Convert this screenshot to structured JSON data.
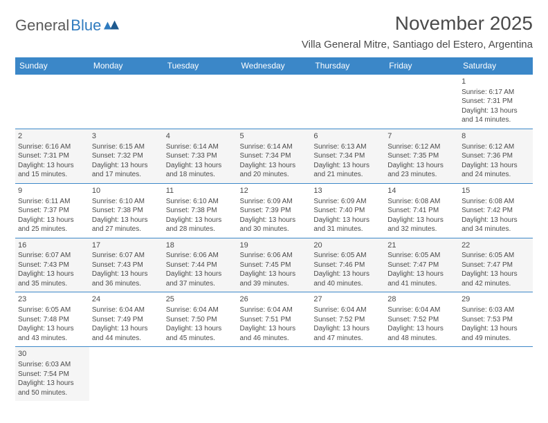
{
  "logo": {
    "text1": "General",
    "text2": "Blue"
  },
  "title": "November 2025",
  "location": "Villa General Mitre, Santiago del Estero, Argentina",
  "colors": {
    "header_bg": "#3b87c8",
    "header_text": "#ffffff",
    "cell_border": "#3b87c8",
    "shaded_bg": "#f5f5f5",
    "text": "#4a4a4a",
    "logo_gray": "#5a5a5a",
    "logo_blue": "#2f7bbf"
  },
  "weekdays": [
    "Sunday",
    "Monday",
    "Tuesday",
    "Wednesday",
    "Thursday",
    "Friday",
    "Saturday"
  ],
  "weeks": [
    [
      null,
      null,
      null,
      null,
      null,
      null,
      {
        "n": "1",
        "sr": "6:17 AM",
        "ss": "7:31 PM",
        "dl": "13 hours and 14 minutes."
      }
    ],
    [
      {
        "n": "2",
        "sr": "6:16 AM",
        "ss": "7:31 PM",
        "dl": "13 hours and 15 minutes."
      },
      {
        "n": "3",
        "sr": "6:15 AM",
        "ss": "7:32 PM",
        "dl": "13 hours and 17 minutes."
      },
      {
        "n": "4",
        "sr": "6:14 AM",
        "ss": "7:33 PM",
        "dl": "13 hours and 18 minutes."
      },
      {
        "n": "5",
        "sr": "6:14 AM",
        "ss": "7:34 PM",
        "dl": "13 hours and 20 minutes."
      },
      {
        "n": "6",
        "sr": "6:13 AM",
        "ss": "7:34 PM",
        "dl": "13 hours and 21 minutes."
      },
      {
        "n": "7",
        "sr": "6:12 AM",
        "ss": "7:35 PM",
        "dl": "13 hours and 23 minutes."
      },
      {
        "n": "8",
        "sr": "6:12 AM",
        "ss": "7:36 PM",
        "dl": "13 hours and 24 minutes."
      }
    ],
    [
      {
        "n": "9",
        "sr": "6:11 AM",
        "ss": "7:37 PM",
        "dl": "13 hours and 25 minutes."
      },
      {
        "n": "10",
        "sr": "6:10 AM",
        "ss": "7:38 PM",
        "dl": "13 hours and 27 minutes."
      },
      {
        "n": "11",
        "sr": "6:10 AM",
        "ss": "7:38 PM",
        "dl": "13 hours and 28 minutes."
      },
      {
        "n": "12",
        "sr": "6:09 AM",
        "ss": "7:39 PM",
        "dl": "13 hours and 30 minutes."
      },
      {
        "n": "13",
        "sr": "6:09 AM",
        "ss": "7:40 PM",
        "dl": "13 hours and 31 minutes."
      },
      {
        "n": "14",
        "sr": "6:08 AM",
        "ss": "7:41 PM",
        "dl": "13 hours and 32 minutes."
      },
      {
        "n": "15",
        "sr": "6:08 AM",
        "ss": "7:42 PM",
        "dl": "13 hours and 34 minutes."
      }
    ],
    [
      {
        "n": "16",
        "sr": "6:07 AM",
        "ss": "7:43 PM",
        "dl": "13 hours and 35 minutes."
      },
      {
        "n": "17",
        "sr": "6:07 AM",
        "ss": "7:43 PM",
        "dl": "13 hours and 36 minutes."
      },
      {
        "n": "18",
        "sr": "6:06 AM",
        "ss": "7:44 PM",
        "dl": "13 hours and 37 minutes."
      },
      {
        "n": "19",
        "sr": "6:06 AM",
        "ss": "7:45 PM",
        "dl": "13 hours and 39 minutes."
      },
      {
        "n": "20",
        "sr": "6:05 AM",
        "ss": "7:46 PM",
        "dl": "13 hours and 40 minutes."
      },
      {
        "n": "21",
        "sr": "6:05 AM",
        "ss": "7:47 PM",
        "dl": "13 hours and 41 minutes."
      },
      {
        "n": "22",
        "sr": "6:05 AM",
        "ss": "7:47 PM",
        "dl": "13 hours and 42 minutes."
      }
    ],
    [
      {
        "n": "23",
        "sr": "6:05 AM",
        "ss": "7:48 PM",
        "dl": "13 hours and 43 minutes."
      },
      {
        "n": "24",
        "sr": "6:04 AM",
        "ss": "7:49 PM",
        "dl": "13 hours and 44 minutes."
      },
      {
        "n": "25",
        "sr": "6:04 AM",
        "ss": "7:50 PM",
        "dl": "13 hours and 45 minutes."
      },
      {
        "n": "26",
        "sr": "6:04 AM",
        "ss": "7:51 PM",
        "dl": "13 hours and 46 minutes."
      },
      {
        "n": "27",
        "sr": "6:04 AM",
        "ss": "7:52 PM",
        "dl": "13 hours and 47 minutes."
      },
      {
        "n": "28",
        "sr": "6:04 AM",
        "ss": "7:52 PM",
        "dl": "13 hours and 48 minutes."
      },
      {
        "n": "29",
        "sr": "6:03 AM",
        "ss": "7:53 PM",
        "dl": "13 hours and 49 minutes."
      }
    ],
    [
      {
        "n": "30",
        "sr": "6:03 AM",
        "ss": "7:54 PM",
        "dl": "13 hours and 50 minutes."
      },
      null,
      null,
      null,
      null,
      null,
      null
    ]
  ],
  "labels": {
    "sunrise": "Sunrise:",
    "sunset": "Sunset:",
    "daylight": "Daylight:"
  }
}
